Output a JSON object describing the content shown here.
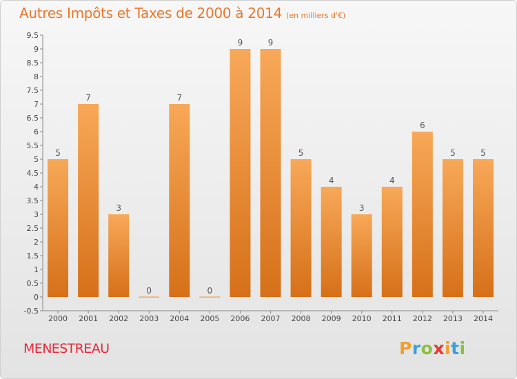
{
  "header": {
    "title": "Autres Impôts et Taxes de 2000 à 2014",
    "subtitle": "(en milliers d'€)"
  },
  "footer": {
    "town": "MENESTREAU",
    "logo_letters": [
      "P",
      "r",
      "o",
      "x",
      "i",
      "t",
      "i"
    ],
    "logo_colors": [
      "#f2a02b",
      "#3da0d8",
      "#8bbf3f",
      "#e53935",
      "#f2a02b",
      "#3da0d8",
      "#8bbf3f"
    ]
  },
  "colors": {
    "title": "#e8762a",
    "town": "#e8293b",
    "bar_light": "#f7a858",
    "bar_dark": "#d67019"
  },
  "chart_data": {
    "type": "bar",
    "categories": [
      "2000",
      "2001",
      "2002",
      "2003",
      "2004",
      "2005",
      "2006",
      "2007",
      "2008",
      "2009",
      "2010",
      "2011",
      "2012",
      "2013",
      "2014"
    ],
    "values": [
      5,
      7,
      3,
      0,
      7,
      0,
      9,
      9,
      5,
      4,
      3,
      4,
      6,
      5,
      5
    ],
    "data_labels": [
      "5",
      "7",
      "3",
      "0",
      "7",
      "0",
      "9",
      "9",
      "5",
      "4",
      "3",
      "4",
      "6",
      "5",
      "5"
    ],
    "y_ticks": [
      "-0.5",
      "0",
      "0.5",
      "1",
      "1.5",
      "2",
      "2.5",
      "3",
      "3.5",
      "4",
      "4.5",
      "5",
      "5.5",
      "6",
      "6.5",
      "7",
      "7.5",
      "8",
      "8.5",
      "9",
      "9.5"
    ],
    "ylim": [
      -0.5,
      9.5
    ],
    "grid": false,
    "title": "Autres Impôts et Taxes de 2000 à 2014",
    "xlabel": "",
    "ylabel": ""
  }
}
